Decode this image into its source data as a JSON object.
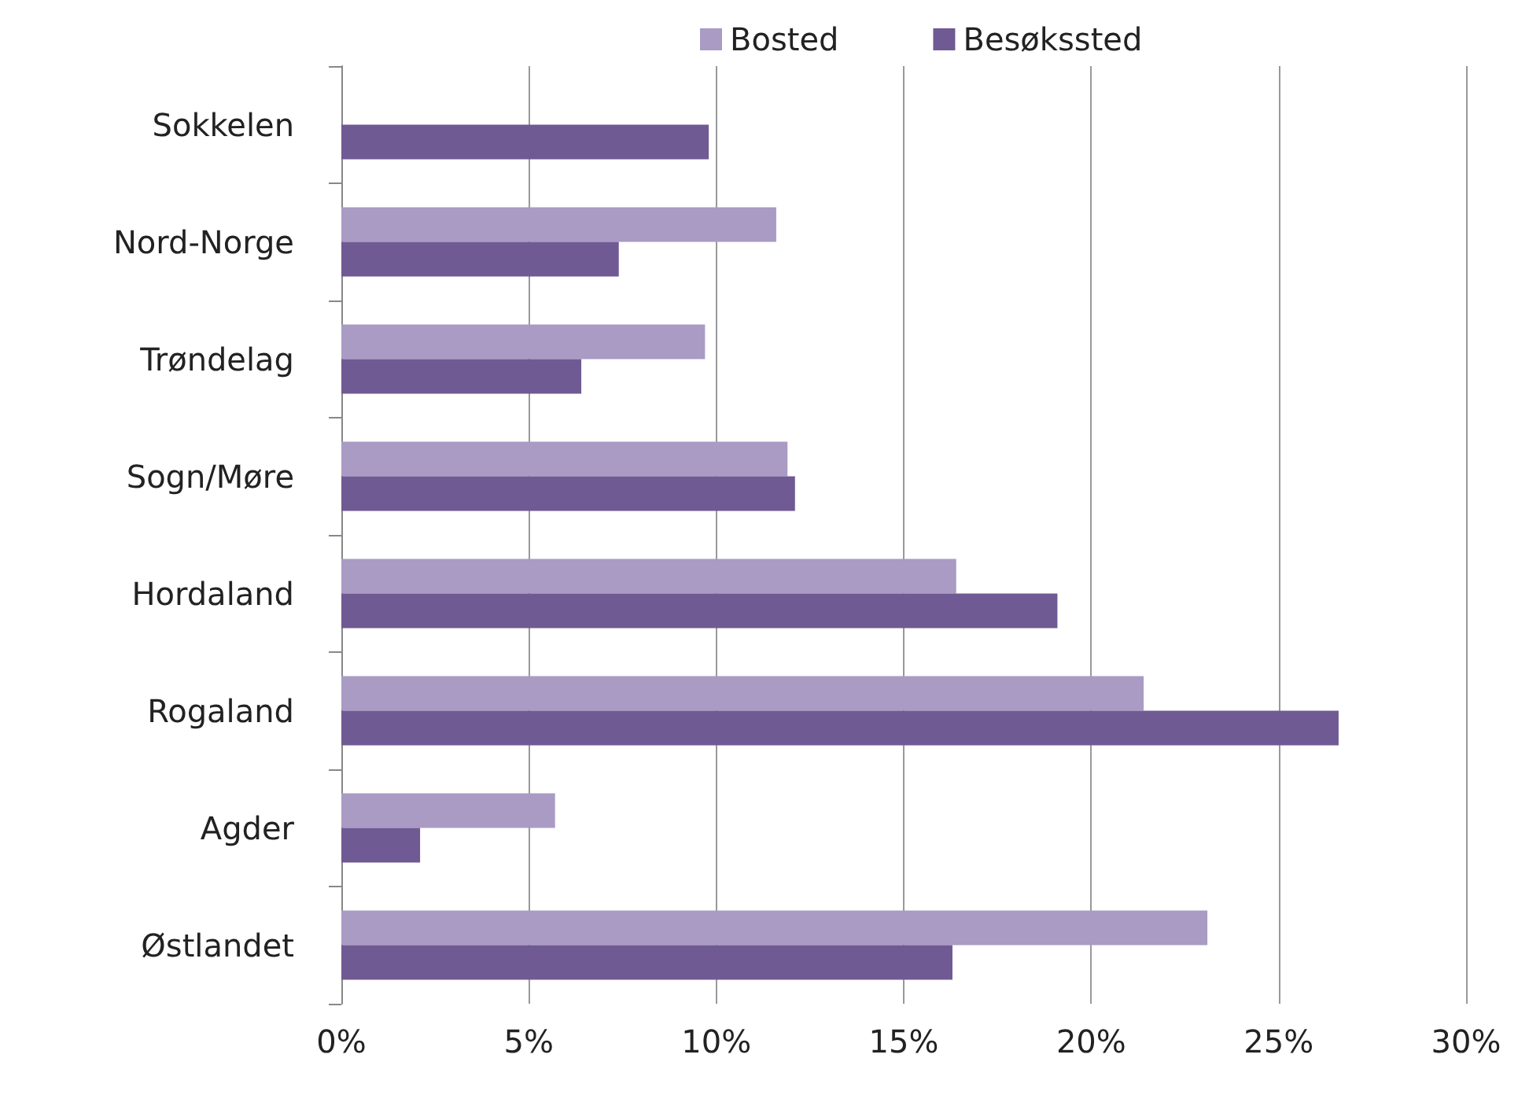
{
  "chart_data": {
    "type": "bar",
    "orientation": "horizontal",
    "categories": [
      "Sokkelen",
      "Nord-Norge",
      "Trøndelag",
      "Sogn/Møre",
      "Hordaland",
      "Rogaland",
      "Agder",
      "Østlandet"
    ],
    "series": [
      {
        "name": "Bosted",
        "color": "#a99bc4",
        "values": [
          null,
          11.6,
          9.7,
          11.9,
          16.4,
          21.4,
          5.7,
          23.1
        ]
      },
      {
        "name": "Besøkssted",
        "color": "#6f5a93",
        "values": [
          9.8,
          7.4,
          6.4,
          12.1,
          19.1,
          26.6,
          2.1,
          16.3
        ]
      }
    ],
    "xlim": [
      0,
      30
    ],
    "xticks": [
      {
        "value": 0,
        "label": "0%"
      },
      {
        "value": 5,
        "label": "5%"
      },
      {
        "value": 10,
        "label": "10%"
      },
      {
        "value": 15,
        "label": "15%"
      },
      {
        "value": 20,
        "label": "20%"
      },
      {
        "value": 25,
        "label": "25%"
      },
      {
        "value": 30,
        "label": "30%"
      }
    ],
    "grid": "x",
    "legend": "top"
  }
}
